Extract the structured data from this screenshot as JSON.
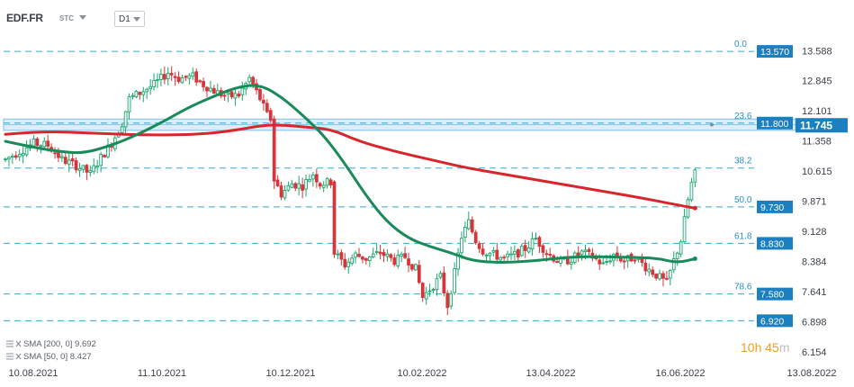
{
  "header": {
    "symbol": "EDF.FR",
    "type_label": "STC",
    "timeframe": "D1"
  },
  "legend": {
    "sma200_label": "SMA [200, 0] 9.692",
    "sma50_label": "SMA [50, 0] 8.427"
  },
  "timer": {
    "hours": "10h",
    "minutes": "45",
    "minutes_unit": "m"
  },
  "colors": {
    "up": "#18a86c",
    "down": "#d8343a",
    "sma200": "#d7262c",
    "sma50": "#1a8a5a",
    "fib_line": "#35a8d8",
    "fib_label": "#2a8fc4",
    "price_box": "#1c7fbf",
    "band_fill": "#dcedf8",
    "band_stroke": "#7ec0e6",
    "axis_text": "#3a3f48"
  },
  "chart_data": {
    "type": "candlestick",
    "symbol": "EDF.FR",
    "timeframe": "D1",
    "x_tick_labels": [
      "10.08.2021",
      "11.10.2021",
      "10.12.2021",
      "10.02.2022",
      "13.04.2022",
      "16.06.2022",
      "13.08.2022"
    ],
    "y_tick_labels": [
      "13.588",
      "12.845",
      "12.101",
      "11.358",
      "10.615",
      "9.871",
      "9.128",
      "8.384",
      "7.641",
      "6.898",
      "6.154"
    ],
    "ylim": [
      5.95,
      13.95
    ],
    "current_price": "11.745",
    "resistance_band": [
      11.62,
      11.9
    ],
    "fib_levels": [
      {
        "ratio": "0.0",
        "price": "13.570"
      },
      {
        "ratio": "23.6",
        "price": "11.800"
      },
      {
        "ratio": "38.2",
        "price": "10.690"
      },
      {
        "ratio": "50.0",
        "price": "9.730"
      },
      {
        "ratio": "61.8",
        "price": "8.830"
      },
      {
        "ratio": "78.6",
        "price": "7.580"
      },
      {
        "ratio": "",
        "price": "6.920"
      }
    ],
    "price_labels": [
      "13.570",
      "11.800",
      "9.730",
      "8.830",
      "7.580",
      "6.920"
    ],
    "keypoints": [
      [
        0,
        10.9
      ],
      [
        4,
        11.1
      ],
      [
        8,
        11.3
      ],
      [
        12,
        11.25
      ],
      [
        16,
        10.9
      ],
      [
        20,
        10.75
      ],
      [
        24,
        10.55
      ],
      [
        27,
        10.95
      ],
      [
        30,
        11.3
      ],
      [
        33,
        11.8
      ],
      [
        35,
        12.4
      ],
      [
        38,
        12.55
      ],
      [
        42,
        12.75
      ],
      [
        46,
        13.05
      ],
      [
        49,
        12.9
      ],
      [
        53,
        12.95
      ],
      [
        56,
        12.75
      ],
      [
        60,
        12.55
      ],
      [
        63,
        12.45
      ],
      [
        66,
        12.5
      ],
      [
        69,
        12.9
      ],
      [
        72,
        12.4
      ],
      [
        74,
        12.0
      ],
      [
        75,
        11.9
      ],
      [
        76,
        10.4
      ],
      [
        78,
        10.05
      ],
      [
        81,
        10.3
      ],
      [
        84,
        10.25
      ],
      [
        87,
        10.55
      ],
      [
        89,
        10.3
      ],
      [
        92,
        10.35
      ],
      [
        93,
        8.6
      ],
      [
        96,
        8.3
      ],
      [
        99,
        8.55
      ],
      [
        102,
        8.45
      ],
      [
        106,
        8.6
      ],
      [
        110,
        8.4
      ],
      [
        113,
        8.5
      ],
      [
        116,
        8.2
      ],
      [
        118,
        7.5
      ],
      [
        121,
        7.8
      ],
      [
        123,
        8.0
      ],
      [
        125,
        7.3
      ],
      [
        127,
        8.1
      ],
      [
        129,
        9.0
      ],
      [
        131,
        9.35
      ],
      [
        133,
        8.9
      ],
      [
        135,
        8.65
      ],
      [
        138,
        8.55
      ],
      [
        141,
        8.45
      ],
      [
        144,
        8.55
      ],
      [
        147,
        8.7
      ],
      [
        150,
        8.95
      ],
      [
        153,
        8.6
      ],
      [
        157,
        8.35
      ],
      [
        160,
        8.45
      ],
      [
        163,
        8.6
      ],
      [
        166,
        8.5
      ],
      [
        169,
        8.3
      ],
      [
        172,
        8.55
      ],
      [
        175,
        8.4
      ],
      [
        178,
        8.5
      ],
      [
        181,
        8.25
      ],
      [
        184,
        8.05
      ],
      [
        187,
        7.85
      ],
      [
        189,
        8.4
      ],
      [
        191,
        8.9
      ],
      [
        193,
        9.9
      ],
      [
        194,
        10.3
      ],
      [
        195,
        10.55
      ]
    ],
    "sma200": [
      [
        0,
        11.52
      ],
      [
        10,
        11.6
      ],
      [
        25,
        11.55
      ],
      [
        40,
        11.5
      ],
      [
        55,
        11.52
      ],
      [
        65,
        11.62
      ],
      [
        73,
        11.75
      ],
      [
        79,
        11.75
      ],
      [
        85,
        11.7
      ],
      [
        92,
        11.65
      ],
      [
        100,
        11.35
      ],
      [
        110,
        11.1
      ],
      [
        120,
        10.9
      ],
      [
        130,
        10.7
      ],
      [
        140,
        10.55
      ],
      [
        150,
        10.4
      ],
      [
        160,
        10.25
      ],
      [
        170,
        10.1
      ],
      [
        180,
        9.95
      ],
      [
        190,
        9.78
      ],
      [
        195,
        9.7
      ]
    ],
    "sma50": [
      [
        0,
        11.35
      ],
      [
        8,
        11.2
      ],
      [
        15,
        11.1
      ],
      [
        22,
        11.05
      ],
      [
        30,
        11.25
      ],
      [
        37,
        11.5
      ],
      [
        45,
        11.85
      ],
      [
        52,
        12.2
      ],
      [
        60,
        12.5
      ],
      [
        66,
        12.7
      ],
      [
        72,
        12.75
      ],
      [
        78,
        12.45
      ],
      [
        84,
        12.0
      ],
      [
        90,
        11.5
      ],
      [
        96,
        10.8
      ],
      [
        102,
        10.0
      ],
      [
        108,
        9.35
      ],
      [
        114,
        8.95
      ],
      [
        120,
        8.75
      ],
      [
        126,
        8.6
      ],
      [
        132,
        8.4
      ],
      [
        140,
        8.35
      ],
      [
        150,
        8.4
      ],
      [
        160,
        8.5
      ],
      [
        170,
        8.5
      ],
      [
        180,
        8.48
      ],
      [
        185,
        8.45
      ],
      [
        190,
        8.35
      ],
      [
        195,
        8.45
      ]
    ]
  }
}
